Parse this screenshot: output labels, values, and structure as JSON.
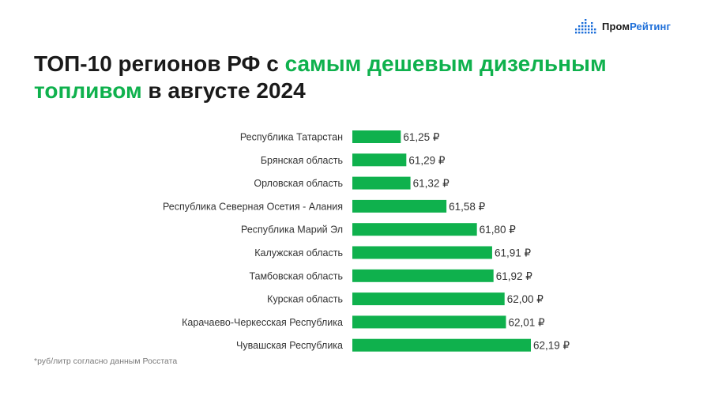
{
  "brand": {
    "name_part1": "Пром",
    "name_part2": "Рейтинг",
    "color_dark": "#1a1a1a",
    "color_blue": "#1e6fd9"
  },
  "title": {
    "part1": "ТОП-10 регионов РФ с ",
    "highlight1": "самым дешевым дизельным",
    "highlight2": "топливом",
    "part2": " в августе 2024",
    "highlight_color": "#0fb14d"
  },
  "footnote": "*руб/литр согласно данным Росстата",
  "chart_data": {
    "type": "bar",
    "orientation": "horizontal",
    "bar_color": "#0fb14d",
    "categories": [
      "Республика Татарстан",
      "Брянская область",
      "Орловская область",
      "Республика Северная Осетия - Алания",
      "Республика Марий Эл",
      "Калужская область",
      "Тамбовская область",
      "Курская область",
      "Карачаево-Черкесская Республика",
      "Чувашская Республика"
    ],
    "values": [
      61.25,
      61.29,
      61.32,
      61.58,
      61.8,
      61.91,
      61.92,
      62.0,
      62.01,
      62.19
    ],
    "value_labels": [
      "61,25 ₽",
      "61,29 ₽",
      "61,32 ₽",
      "61,58 ₽",
      "61,80 ₽",
      "61,91 ₽",
      "61,92 ₽",
      "62,00 ₽",
      "62,01 ₽",
      "62,19 ₽"
    ],
    "xlim": [
      60.9,
      62.27
    ],
    "grid": false,
    "legend": "none"
  }
}
